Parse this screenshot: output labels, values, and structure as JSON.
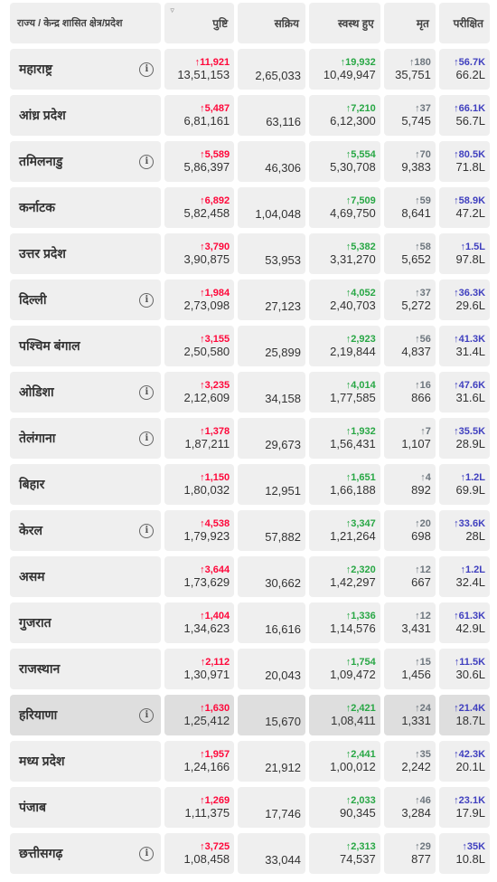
{
  "header": {
    "state": "राज्य / केन्द्र शासित क्षेत्र/प्रदेश",
    "confirmed": "पुष्टि",
    "active": "सक्रिय",
    "recovered": "स्वस्थ हुए",
    "deceased": "मृत",
    "tested": "परीक्षित"
  },
  "colors": {
    "confirmed": "#ff073a",
    "recovered": "#28a745",
    "deceased": "#6c757d",
    "tested": "#3f3fbf"
  },
  "rows": [
    {
      "name": "महाराष्ट्र",
      "info": true,
      "conf_d": "↑11,921",
      "conf": "13,51,153",
      "active": "2,65,033",
      "rec_d": "↑19,932",
      "rec": "10,49,947",
      "dec_d": "↑180",
      "dec": "35,751",
      "test_d": "↑56.7K",
      "test": "66.2L"
    },
    {
      "name": "आंध्र प्रदेश",
      "info": false,
      "conf_d": "↑5,487",
      "conf": "6,81,161",
      "active": "63,116",
      "rec_d": "↑7,210",
      "rec": "6,12,300",
      "dec_d": "↑37",
      "dec": "5,745",
      "test_d": "↑66.1K",
      "test": "56.7L"
    },
    {
      "name": "तमिलनाडु",
      "info": true,
      "conf_d": "↑5,589",
      "conf": "5,86,397",
      "active": "46,306",
      "rec_d": "↑5,554",
      "rec": "5,30,708",
      "dec_d": "↑70",
      "dec": "9,383",
      "test_d": "↑80.5K",
      "test": "71.8L"
    },
    {
      "name": "कर्नाटक",
      "info": false,
      "conf_d": "↑6,892",
      "conf": "5,82,458",
      "active": "1,04,048",
      "rec_d": "↑7,509",
      "rec": "4,69,750",
      "dec_d": "↑59",
      "dec": "8,641",
      "test_d": "↑58.9K",
      "test": "47.2L"
    },
    {
      "name": "उत्तर प्रदेश",
      "info": false,
      "conf_d": "↑3,790",
      "conf": "3,90,875",
      "active": "53,953",
      "rec_d": "↑5,382",
      "rec": "3,31,270",
      "dec_d": "↑58",
      "dec": "5,652",
      "test_d": "↑1.5L",
      "test": "97.8L"
    },
    {
      "name": "दिल्ली",
      "info": true,
      "conf_d": "↑1,984",
      "conf": "2,73,098",
      "active": "27,123",
      "rec_d": "↑4,052",
      "rec": "2,40,703",
      "dec_d": "↑37",
      "dec": "5,272",
      "test_d": "↑36.3K",
      "test": "29.6L"
    },
    {
      "name": "पश्चिम बंगाल",
      "info": false,
      "conf_d": "↑3,155",
      "conf": "2,50,580",
      "active": "25,899",
      "rec_d": "↑2,923",
      "rec": "2,19,844",
      "dec_d": "↑56",
      "dec": "4,837",
      "test_d": "↑41.3K",
      "test": "31.4L"
    },
    {
      "name": "ओडिशा",
      "info": true,
      "conf_d": "↑3,235",
      "conf": "2,12,609",
      "active": "34,158",
      "rec_d": "↑4,014",
      "rec": "1,77,585",
      "dec_d": "↑16",
      "dec": "866",
      "test_d": "↑47.6K",
      "test": "31.6L"
    },
    {
      "name": "तेलंगाना",
      "info": true,
      "conf_d": "↑1,378",
      "conf": "1,87,211",
      "active": "29,673",
      "rec_d": "↑1,932",
      "rec": "1,56,431",
      "dec_d": "↑7",
      "dec": "1,107",
      "test_d": "↑35.5K",
      "test": "28.9L"
    },
    {
      "name": "बिहार",
      "info": false,
      "conf_d": "↑1,150",
      "conf": "1,80,032",
      "active": "12,951",
      "rec_d": "↑1,651",
      "rec": "1,66,188",
      "dec_d": "↑4",
      "dec": "892",
      "test_d": "↑1.2L",
      "test": "69.9L"
    },
    {
      "name": "केरल",
      "info": true,
      "conf_d": "↑4,538",
      "conf": "1,79,923",
      "active": "57,882",
      "rec_d": "↑3,347",
      "rec": "1,21,264",
      "dec_d": "↑20",
      "dec": "698",
      "test_d": "↑33.6K",
      "test": "28L"
    },
    {
      "name": "असम",
      "info": false,
      "conf_d": "↑3,644",
      "conf": "1,73,629",
      "active": "30,662",
      "rec_d": "↑2,320",
      "rec": "1,42,297",
      "dec_d": "↑12",
      "dec": "667",
      "test_d": "↑1.2L",
      "test": "32.4L"
    },
    {
      "name": "गुजरात",
      "info": false,
      "conf_d": "↑1,404",
      "conf": "1,34,623",
      "active": "16,616",
      "rec_d": "↑1,336",
      "rec": "1,14,576",
      "dec_d": "↑12",
      "dec": "3,431",
      "test_d": "↑61.3K",
      "test": "42.9L"
    },
    {
      "name": "राजस्थान",
      "info": false,
      "conf_d": "↑2,112",
      "conf": "1,30,971",
      "active": "20,043",
      "rec_d": "↑1,754",
      "rec": "1,09,472",
      "dec_d": "↑15",
      "dec": "1,456",
      "test_d": "↑11.5K",
      "test": "30.6L"
    },
    {
      "name": "हरियाणा",
      "info": true,
      "highlight": true,
      "conf_d": "↑1,630",
      "conf": "1,25,412",
      "active": "15,670",
      "rec_d": "↑2,421",
      "rec": "1,08,411",
      "dec_d": "↑24",
      "dec": "1,331",
      "test_d": "↑21.4K",
      "test": "18.7L"
    },
    {
      "name": "मध्य प्रदेश",
      "info": false,
      "conf_d": "↑1,957",
      "conf": "1,24,166",
      "active": "21,912",
      "rec_d": "↑2,441",
      "rec": "1,00,012",
      "dec_d": "↑35",
      "dec": "2,242",
      "test_d": "↑42.3K",
      "test": "20.1L"
    },
    {
      "name": "पंजाब",
      "info": false,
      "conf_d": "↑1,269",
      "conf": "1,11,375",
      "active": "17,746",
      "rec_d": "↑2,033",
      "rec": "90,345",
      "dec_d": "↑46",
      "dec": "3,284",
      "test_d": "↑23.1K",
      "test": "17.9L"
    },
    {
      "name": "छत्तीसगढ़",
      "info": true,
      "conf_d": "↑3,725",
      "conf": "1,08,458",
      "active": "33,044",
      "rec_d": "↑2,313",
      "rec": "74,537",
      "dec_d": "↑29",
      "dec": "877",
      "test_d": "↑35K",
      "test": "10.8L"
    }
  ]
}
